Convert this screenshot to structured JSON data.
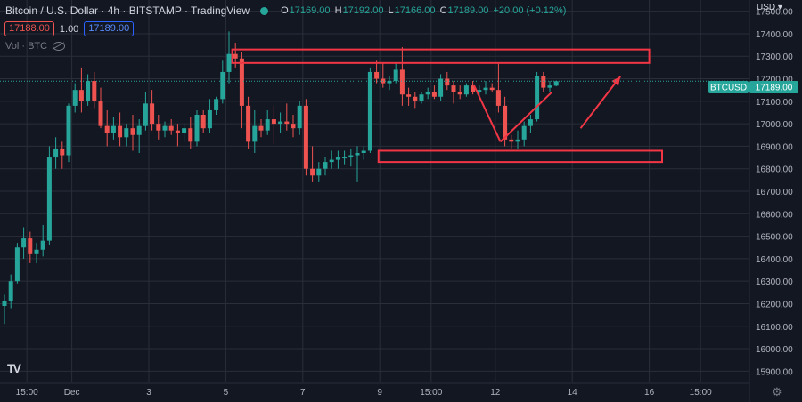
{
  "header": {
    "title": "Bitcoin / U.S. Dollar · 4h · BITSTAMP · TradingView",
    "ohlc": {
      "o_label": "O",
      "o": "17169.00",
      "h_label": "H",
      "h": "17192.00",
      "l_label": "L",
      "l": "17166.00",
      "c_label": "C",
      "c": "17189.00",
      "change": "+20.00 (+0.12%)"
    }
  },
  "quote": {
    "sell": "17188.00",
    "spread": "1.00",
    "buy": "17189.00"
  },
  "volume_label": "Vol · BTC",
  "currency": "USD",
  "price_tag": {
    "symbol": "BTCUSD",
    "price": "17189.00"
  },
  "logo_text": "TV",
  "colors": {
    "bg": "#131722",
    "up": "#26a69a",
    "down": "#ef5350",
    "annotation": "#f23645",
    "grid": "#2a2e39",
    "text": "#b2b5be"
  },
  "chart_data": {
    "type": "candlestick",
    "y_ticks": [
      15900,
      16000,
      16100,
      16200,
      16300,
      16400,
      16500,
      16600,
      16700,
      16800,
      16900,
      17000,
      17100,
      17200,
      17300,
      17400,
      17500
    ],
    "y_tick_labels": [
      "15900.00",
      "16000.00",
      "16100.00",
      "16200.00",
      "16300.00",
      "16400.00",
      "16500.00",
      "16600.00",
      "16700.00",
      "16800.00",
      "16900.00",
      "17000.00",
      "17100.00",
      "17200.00",
      "17300.00",
      "17400.00",
      "17500.00"
    ],
    "ylim": [
      15850,
      17550
    ],
    "x_labels": [
      {
        "label": "15:00",
        "bar": 3.5
      },
      {
        "label": "Dec",
        "bar": 10.5
      },
      {
        "label": "3",
        "bar": 22.5
      },
      {
        "label": "5",
        "bar": 34.5
      },
      {
        "label": "7",
        "bar": 46.5
      },
      {
        "label": "9",
        "bar": 58.5
      },
      {
        "label": "15:00",
        "bar": 66.5
      },
      {
        "label": "12",
        "bar": 76.5
      },
      {
        "label": "14",
        "bar": 88.5
      },
      {
        "label": "16",
        "bar": 100.5
      },
      {
        "label": "15:00",
        "bar": 108.5
      }
    ],
    "candles": [
      [
        16190,
        16240,
        16110,
        16210
      ],
      [
        16210,
        16330,
        16180,
        16300
      ],
      [
        16300,
        16470,
        16290,
        16450
      ],
      [
        16450,
        16540,
        16400,
        16490
      ],
      [
        16490,
        16520,
        16380,
        16420
      ],
      [
        16420,
        16470,
        16380,
        16440
      ],
      [
        16440,
        16550,
        16410,
        16480
      ],
      [
        16480,
        16900,
        16460,
        16850
      ],
      [
        16850,
        16940,
        16800,
        16890
      ],
      [
        16890,
        16920,
        16800,
        16860
      ],
      [
        16860,
        17090,
        16830,
        17080
      ],
      [
        17080,
        17180,
        17050,
        17150
      ],
      [
        17150,
        17250,
        17050,
        17100
      ],
      [
        17100,
        17220,
        17080,
        17190
      ],
      [
        17190,
        17230,
        17070,
        17100
      ],
      [
        17100,
        17160,
        16980,
        16990
      ],
      [
        16990,
        17060,
        16900,
        16960
      ],
      [
        16960,
        17030,
        16930,
        16990
      ],
      [
        16990,
        17050,
        16900,
        16940
      ],
      [
        16940,
        17000,
        16900,
        16980
      ],
      [
        16980,
        17040,
        16880,
        16950
      ],
      [
        16950,
        17020,
        16870,
        16990
      ],
      [
        16990,
        17140,
        16970,
        17090
      ],
      [
        17090,
        17150,
        16970,
        17000
      ],
      [
        17000,
        17040,
        16930,
        16970
      ],
      [
        16970,
        17010,
        16940,
        16990
      ],
      [
        16990,
        17020,
        16950,
        16970
      ],
      [
        16970,
        17000,
        16900,
        16960
      ],
      [
        16960,
        17000,
        16920,
        16980
      ],
      [
        16980,
        17030,
        16890,
        16920
      ],
      [
        16920,
        17060,
        16900,
        17040
      ],
      [
        17040,
        17060,
        16960,
        16980
      ],
      [
        16980,
        17110,
        16960,
        17060
      ],
      [
        17060,
        17120,
        17040,
        17110
      ],
      [
        17110,
        17280,
        17090,
        17230
      ],
      [
        17230,
        17410,
        17180,
        17310
      ],
      [
        17310,
        17360,
        17250,
        17290
      ],
      [
        17290,
        17320,
        16980,
        17080
      ],
      [
        17080,
        17120,
        16890,
        16920
      ],
      [
        16920,
        17060,
        16870,
        16990
      ],
      [
        16990,
        17020,
        16940,
        16970
      ],
      [
        16970,
        17060,
        16950,
        17020
      ],
      [
        17020,
        17080,
        16910,
        17000
      ],
      [
        17000,
        17050,
        16960,
        17010
      ],
      [
        17010,
        17090,
        16970,
        17000
      ],
      [
        17000,
        17040,
        16940,
        16980
      ],
      [
        16980,
        17100,
        16950,
        17080
      ],
      [
        17080,
        17110,
        16770,
        16800
      ],
      [
        16800,
        16900,
        16740,
        16770
      ],
      [
        16770,
        16830,
        16740,
        16800
      ],
      [
        16800,
        16850,
        16770,
        16830
      ],
      [
        16830,
        16880,
        16800,
        16840
      ],
      [
        16840,
        16880,
        16800,
        16850
      ],
      [
        16850,
        16880,
        16820,
        16850
      ],
      [
        16850,
        16890,
        16810,
        16860
      ],
      [
        16860,
        16900,
        16740,
        16870
      ],
      [
        16870,
        16900,
        16840,
        16880
      ],
      [
        16880,
        17250,
        16870,
        17230
      ],
      [
        17230,
        17280,
        17180,
        17200
      ],
      [
        17200,
        17270,
        17160,
        17180
      ],
      [
        17180,
        17210,
        17150,
        17190
      ],
      [
        17190,
        17270,
        17180,
        17240
      ],
      [
        17240,
        17340,
        17080,
        17130
      ],
      [
        17130,
        17160,
        17080,
        17120
      ],
      [
        17120,
        17140,
        17070,
        17100
      ],
      [
        17100,
        17140,
        17090,
        17130
      ],
      [
        17130,
        17160,
        17110,
        17140
      ],
      [
        17140,
        17170,
        17110,
        17120
      ],
      [
        17120,
        17220,
        17100,
        17200
      ],
      [
        17200,
        17230,
        17150,
        17170
      ],
      [
        17170,
        17190,
        17090,
        17140
      ],
      [
        17140,
        17170,
        17110,
        17130
      ],
      [
        17130,
        17180,
        17120,
        17170
      ],
      [
        17170,
        17190,
        17130,
        17140
      ],
      [
        17140,
        17170,
        17120,
        17150
      ],
      [
        17150,
        17190,
        17130,
        17160
      ],
      [
        17160,
        17180,
        17140,
        17150
      ],
      [
        17150,
        17270,
        17050,
        17080
      ],
      [
        17080,
        17120,
        16900,
        16930
      ],
      [
        16930,
        16950,
        16890,
        16920
      ],
      [
        16920,
        16970,
        16890,
        16930
      ],
      [
        16930,
        17010,
        16900,
        16990
      ],
      [
        16990,
        17040,
        16960,
        17020
      ],
      [
        17020,
        17230,
        17010,
        17210
      ],
      [
        17210,
        17230,
        17140,
        17160
      ],
      [
        17160,
        17190,
        17140,
        17170
      ],
      [
        17169,
        17192,
        17166,
        17189
      ]
    ],
    "annotations": {
      "rectangles": [
        {
          "bar_from": 35.5,
          "bar_to": 100.5,
          "price_from": 17330,
          "price_to": 17270
        },
        {
          "bar_from": 58.3,
          "bar_to": 102.5,
          "price_from": 16880,
          "price_to": 16830
        }
      ],
      "lines": [
        {
          "bar_from": 73.2,
          "price_from": 17170,
          "bar_to": 77.3,
          "price_to": 16920
        },
        {
          "bar_from": 77.3,
          "price_from": 16920,
          "bar_to": 85.3,
          "price_to": 17140
        }
      ],
      "arrows": [
        {
          "bar_from": 89.8,
          "price_from": 16980,
          "bar_to": 96.0,
          "price_to": 17210
        }
      ]
    }
  }
}
